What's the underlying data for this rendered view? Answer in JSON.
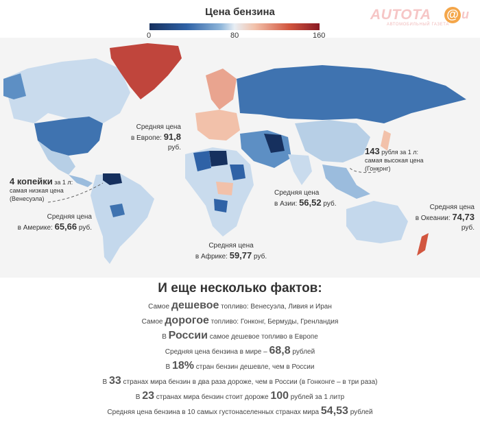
{
  "title": "Цена бензина",
  "legend": {
    "min": "0",
    "mid": "80",
    "max": "160"
  },
  "logo": {
    "text": "AUTOTA",
    "at": "@",
    "suffix": "u",
    "sub": "АВТОМОБИЛЬНЫЙ ГАЗЕТА"
  },
  "colors": {
    "low": "#16305e",
    "mid": "#e8eef4",
    "high": "#8a1a24"
  },
  "annotations": {
    "europe": {
      "line1": "Средняя цена",
      "pre": "в Европе: ",
      "value": "91,8",
      "unit": " руб."
    },
    "asia": {
      "line1": "Средняя цена",
      "pre": "в Азии: ",
      "value": "56,52",
      "unit": " руб."
    },
    "oceania": {
      "line1": "Средняя цена",
      "pre": "в Океании: ",
      "value": "74,73",
      "unit": " руб."
    },
    "america": {
      "line1": "Средняя цена",
      "pre": "в Америке: ",
      "value": "65,66",
      "unit": " руб."
    },
    "africa": {
      "line1": "Средняя цена",
      "pre": "в Африке: ",
      "value": "59,77",
      "unit": " руб."
    },
    "venezuela": {
      "big": "4 копейки",
      "rest": " за 1 л:",
      "line2": "самая низкая цена",
      "line3": "(Венесуэла)"
    },
    "hongkong": {
      "big": "143",
      "rest": " рубля за 1 л:",
      "line2": "самая высокая цена",
      "line3": "(Гонконг)"
    }
  },
  "facts": {
    "title": "И еще несколько фактов:",
    "f1": {
      "a": "Самое ",
      "big": "дешевое",
      "b": " топливо: Венесуэла, Ливия и Иран"
    },
    "f2": {
      "a": "Самое ",
      "big": "дорогое",
      "b": " топливо: Гонконг, Бермуды, Гренландия"
    },
    "f3": {
      "a": "В ",
      "big": "России",
      "b": " самое дешевое топливо в Европе"
    },
    "f4": {
      "a": "Средняя цена бензина в мире – ",
      "big": "68,8",
      "b": " рублей"
    },
    "f5": {
      "a": "В ",
      "big": "18%",
      "b": " стран бензин дешевле, чем в России"
    },
    "f6": {
      "a": "В ",
      "big": "33",
      "b": " странах мира бензин в два раза дороже, чем в России (в Гонконге – в три раза)"
    },
    "f7": {
      "a": "В ",
      "big": "23",
      "b": " странах мира бензин стоит дороже ",
      "big2": "100",
      "c": " рублей за 1 литр"
    },
    "f8": {
      "a": "Средняя цена бензина в 10 самых густонаселенных странах мира ",
      "big": "54,53",
      "b": " рублей"
    }
  }
}
